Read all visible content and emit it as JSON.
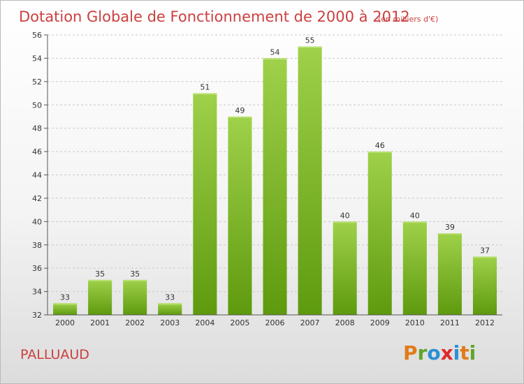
{
  "chart_data": {
    "type": "bar",
    "title": "Dotation Globale de Fonctionnement de 2000 à 2012",
    "subtitle": "(en milliers d'€)",
    "categories": [
      "2000",
      "2001",
      "2002",
      "2003",
      "2004",
      "2005",
      "2006",
      "2007",
      "2008",
      "2009",
      "2010",
      "2011",
      "2012"
    ],
    "values": [
      33,
      35,
      35,
      33,
      51,
      49,
      54,
      55,
      40,
      46,
      40,
      39,
      37
    ],
    "ylim": [
      32,
      56
    ],
    "yticks": [
      32,
      34,
      36,
      38,
      40,
      42,
      44,
      46,
      48,
      50,
      52,
      54,
      56
    ],
    "grid": true,
    "colors": {
      "bar_top": "#9fd14a",
      "bar_bottom": "#5e9a0e",
      "grid": "#c8c8c8",
      "title": "#cc3f3f"
    }
  },
  "footer": {
    "commune": "PALLUAUD",
    "brand": "Proxiti",
    "brand_colors": [
      "#e07b1a",
      "#5fa52b",
      "#2a8fd6",
      "#e02828",
      "#2a8fd6",
      "#e07b1a",
      "#5fa52b"
    ]
  }
}
